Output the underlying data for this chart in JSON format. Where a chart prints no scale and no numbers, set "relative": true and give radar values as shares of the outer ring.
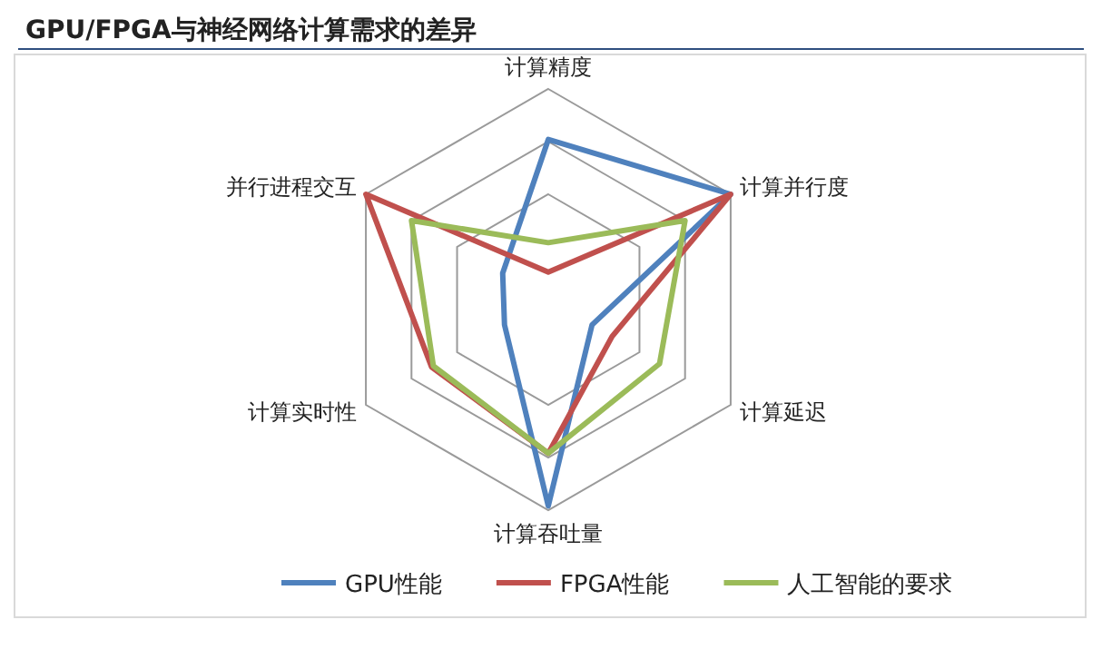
{
  "chart_data": {
    "type": "radar",
    "title": "GPU/FPGA与神经网络计算需求的差异",
    "relative": true,
    "legend": "bottom",
    "categories": [
      "计算精度",
      "计算并行度",
      "计算延迟",
      "计算吞吐量",
      "计算实时性",
      "并行进程交互"
    ],
    "series": [
      {
        "name": "GPU性能",
        "color": "#4f81bd",
        "values": [
          0.76,
          1,
          0.24,
          0.98,
          0.24,
          0.25
        ]
      },
      {
        "name": "FPGA性能",
        "color": "#c0504d",
        "values": [
          0.13,
          1,
          0.35,
          0.73,
          0.64,
          1
        ]
      },
      {
        "name": "人工智能的要求",
        "color": "#9bbb59",
        "values": [
          0.27,
          0.75,
          0.61,
          0.73,
          0.63,
          0.75
        ]
      }
    ]
  }
}
